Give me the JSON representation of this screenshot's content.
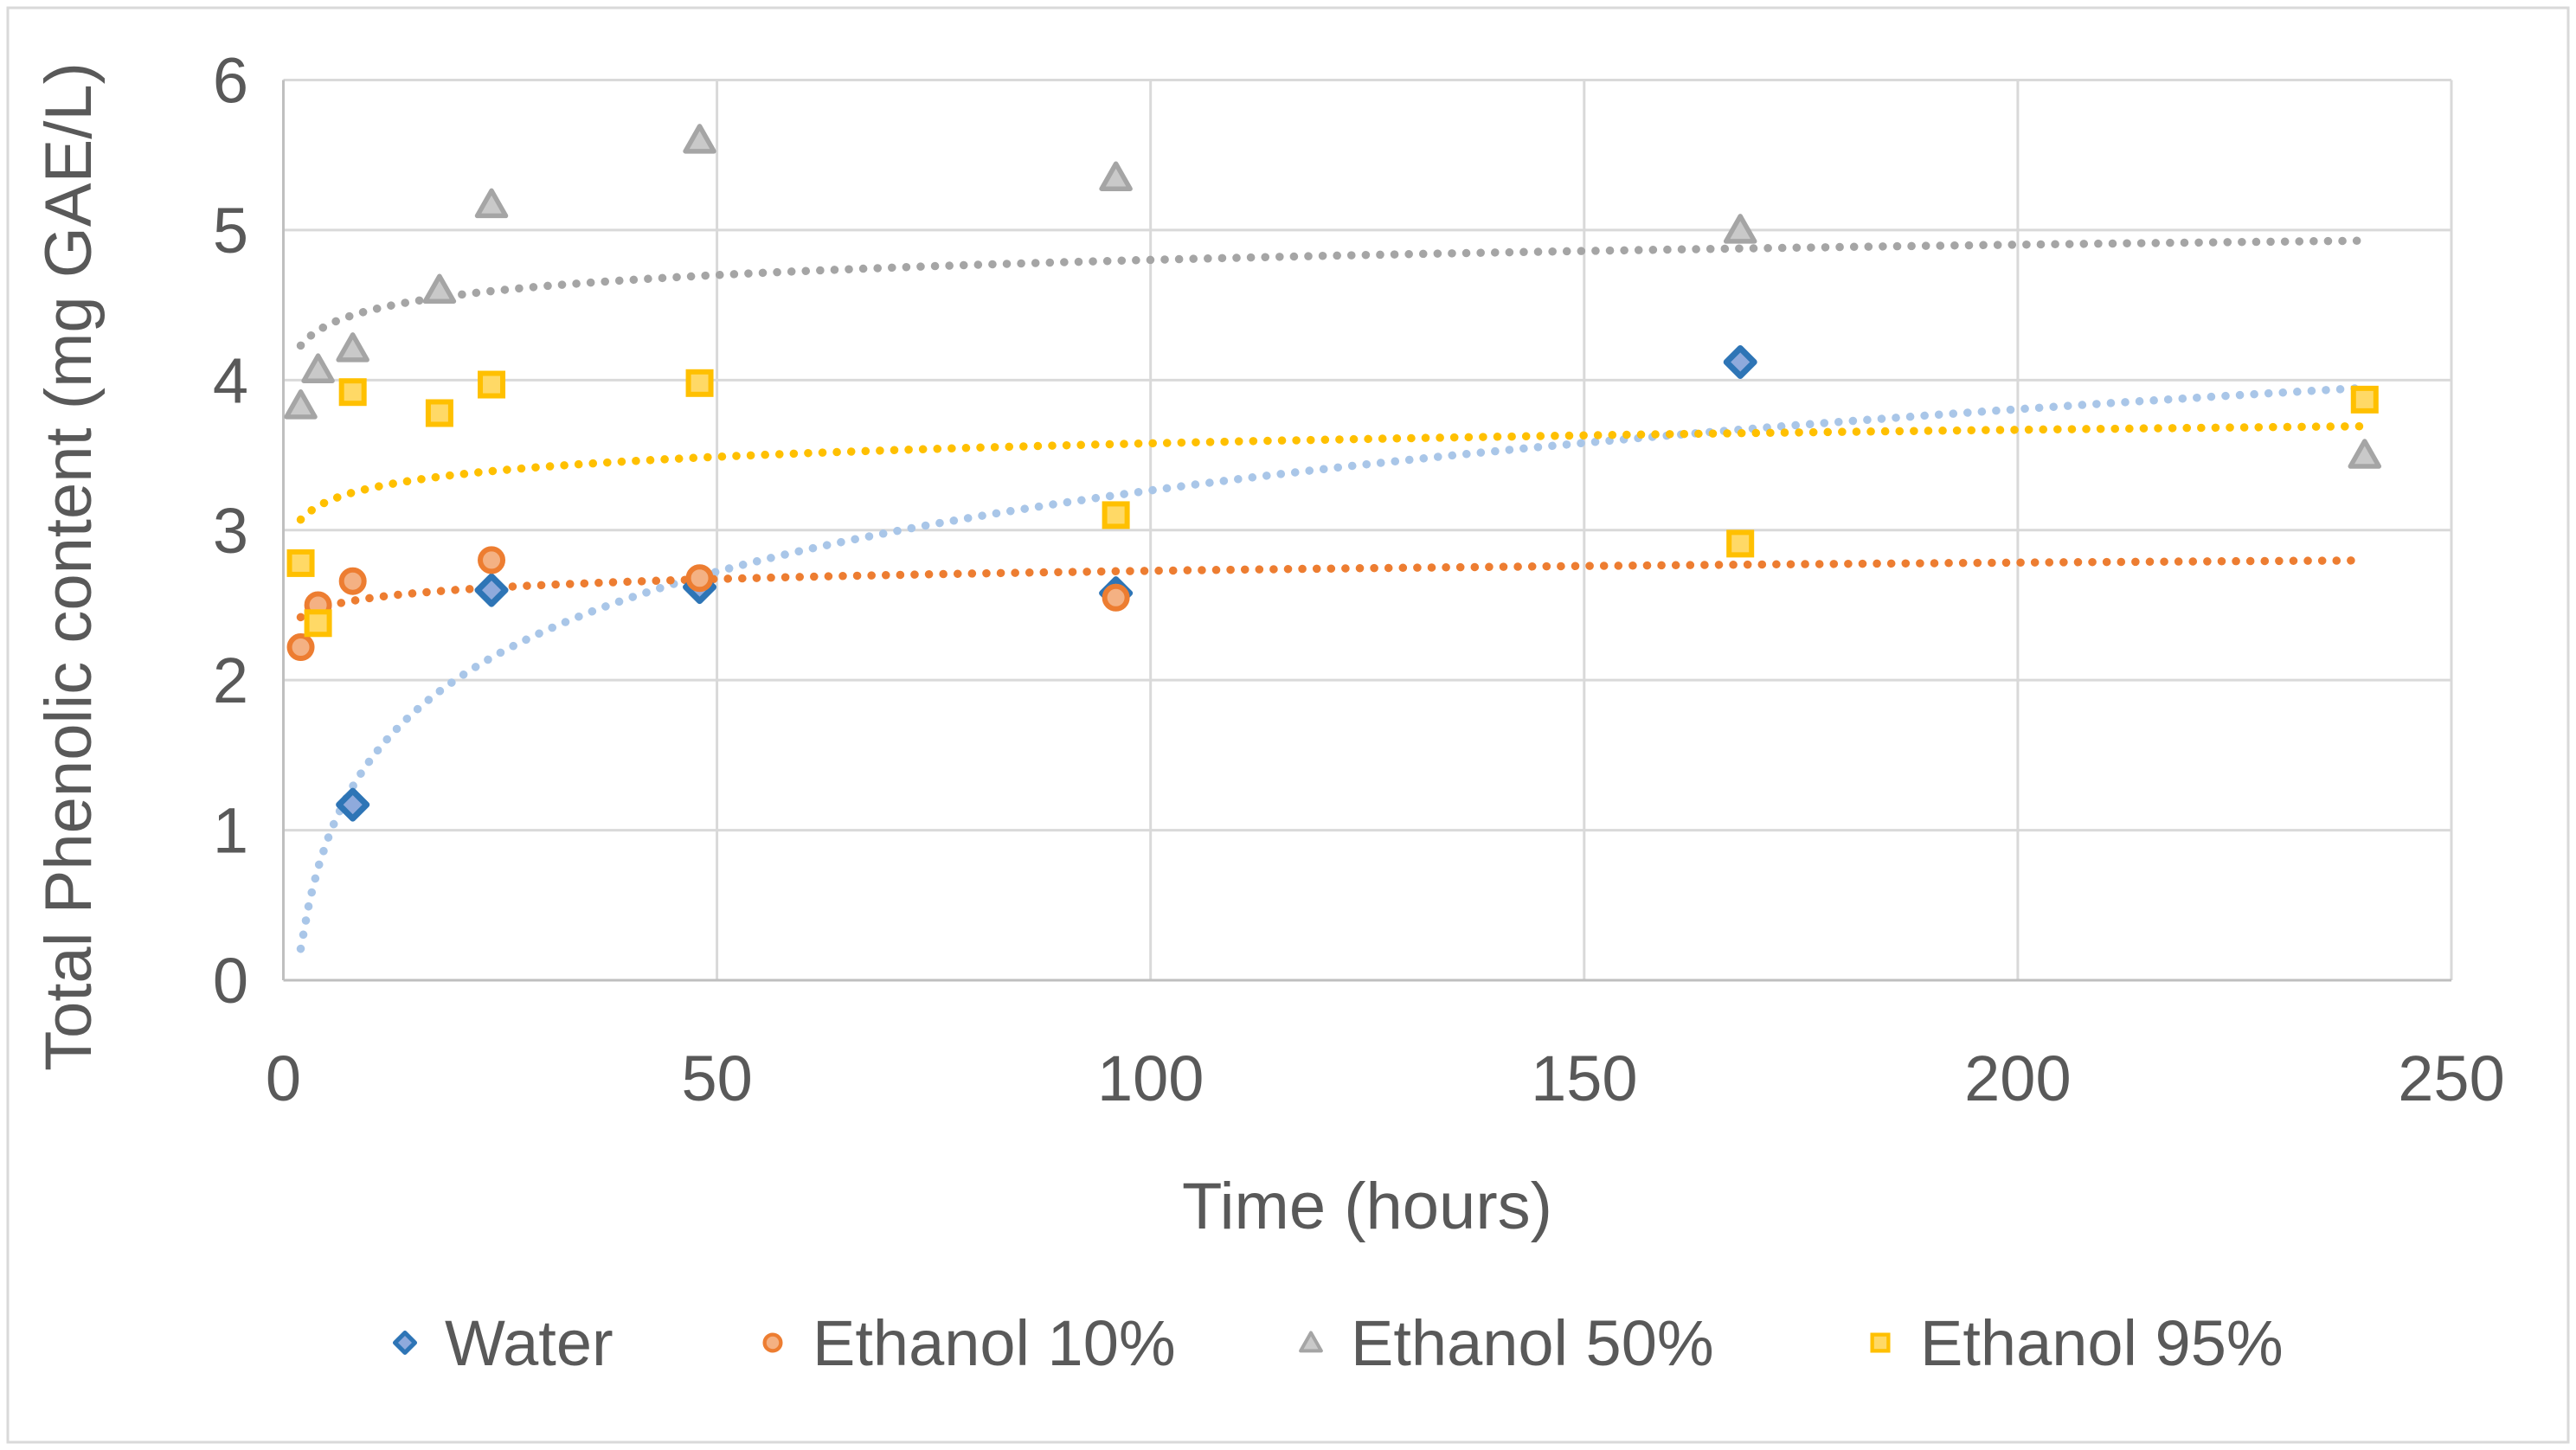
{
  "figure": {
    "background": "#FFFFFF",
    "border_color": "#D9D9D9",
    "text_color": "#595959",
    "gridline_color": "#D9D9D9",
    "axis_line_color": "#BFBFBF"
  },
  "chart_data": {
    "type": "scatter",
    "title": "",
    "xlabel": "Time (hours)",
    "ylabel": "Total Phenolic content (mg GAE/L)",
    "xlim": [
      0,
      250
    ],
    "ylim": [
      0,
      6
    ],
    "x_ticks": [
      0,
      50,
      100,
      150,
      200,
      250
    ],
    "y_ticks": [
      0,
      1,
      2,
      3,
      4,
      5,
      6
    ],
    "grid": true,
    "legend_position": "bottom-center",
    "series": [
      {
        "name": "Water",
        "marker": "diamond",
        "marker_fill": "#8FAADC",
        "marker_stroke": "#2E75B6",
        "points": [
          [
            8,
            1.17
          ],
          [
            24,
            2.6
          ],
          [
            48,
            2.62
          ],
          [
            96,
            2.58
          ],
          [
            168,
            4.12
          ]
        ],
        "trendline": {
          "type": "logarithmic",
          "a": -0.332,
          "b": 0.781,
          "x_start": 2,
          "x_end": 240,
          "color": "#A9C6E8"
        }
      },
      {
        "name": "Ethanol 10%",
        "marker": "circle",
        "marker_fill": "#F4B183",
        "marker_stroke": "#ED7D31",
        "points": [
          [
            2,
            2.22
          ],
          [
            4,
            2.5
          ],
          [
            8,
            2.66
          ],
          [
            24,
            2.8
          ],
          [
            48,
            2.68
          ],
          [
            96,
            2.55
          ]
        ],
        "trendline": {
          "type": "logarithmic",
          "a": 2.365,
          "b": 0.079,
          "x_start": 2,
          "x_end": 240,
          "color": "#ED7D31"
        }
      },
      {
        "name": "Ethanol 50%",
        "marker": "triangle",
        "marker_fill": "#C9C9C9",
        "marker_stroke": "#A5A5A5",
        "points": [
          [
            2,
            3.83
          ],
          [
            4,
            4.07
          ],
          [
            8,
            4.21
          ],
          [
            18,
            4.6
          ],
          [
            24,
            5.17
          ],
          [
            48,
            5.6
          ],
          [
            96,
            5.35
          ],
          [
            168,
            5.0
          ],
          [
            240,
            3.5
          ]
        ],
        "trendline": {
          "type": "logarithmic",
          "a": 4.129,
          "b": 0.146,
          "x_start": 2,
          "x_end": 240,
          "color": "#A5A5A5"
        }
      },
      {
        "name": "Ethanol 95%",
        "marker": "square",
        "marker_fill": "#FFD966",
        "marker_stroke": "#FFC000",
        "points": [
          [
            2,
            2.78
          ],
          [
            4,
            2.38
          ],
          [
            8,
            3.92
          ],
          [
            18,
            3.78
          ],
          [
            24,
            3.97
          ],
          [
            48,
            3.98
          ],
          [
            96,
            3.1
          ],
          [
            168,
            2.91
          ],
          [
            240,
            3.87
          ]
        ],
        "trendline": {
          "type": "logarithmic",
          "a": 2.98,
          "b": 0.13,
          "x_start": 2,
          "x_end": 240,
          "color": "#FFC000"
        }
      }
    ]
  }
}
